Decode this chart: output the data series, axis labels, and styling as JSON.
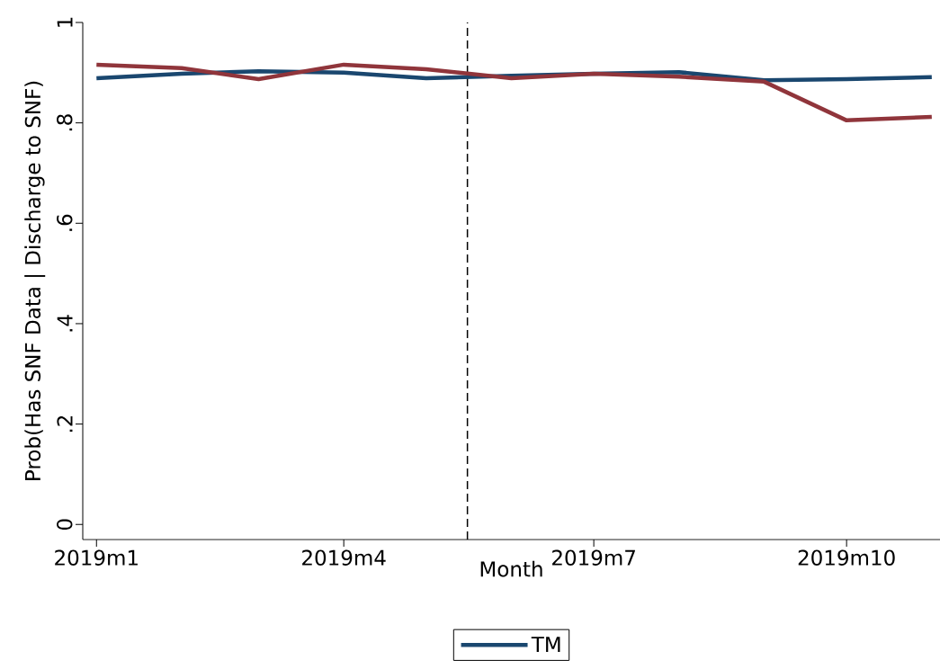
{
  "chart_data": {
    "type": "line",
    "xlabel": "Month",
    "ylabel": "Prob(Has SNF Data | Discharge to SNF)",
    "x": [
      "2019-01",
      "2019-02",
      "2019-03",
      "2019-04",
      "2019-05",
      "2019-06",
      "2019-07",
      "2019-08",
      "2019-09",
      "2019-10",
      "2019-11"
    ],
    "series": [
      {
        "name": "TM",
        "color": "#1a476f",
        "values": [
          0.889,
          0.898,
          0.903,
          0.9,
          0.889,
          0.894,
          0.898,
          0.901,
          0.885,
          0.887,
          0.891
        ]
      },
      {
        "color": "#90353b",
        "values": [
          0.916,
          0.909,
          0.887,
          0.916,
          0.907,
          0.889,
          0.898,
          0.892,
          0.882,
          0.805,
          0.812
        ]
      }
    ],
    "xlim": [
      "2018-12-27",
      "2019-11-04"
    ],
    "ylim": [
      -0.03,
      1.0
    ],
    "xticks": [
      {
        "value": "2019-01",
        "label": "2019m1"
      },
      {
        "value": "2019-04",
        "label": "2019m4"
      },
      {
        "value": "2019-07",
        "label": "2019m7"
      },
      {
        "value": "2019-10",
        "label": "2019m10"
      }
    ],
    "yticks": [
      0,
      {
        "value": 0.2,
        "label": ".2"
      },
      {
        "value": 0.4,
        "label": ".4"
      },
      {
        "value": 0.6,
        "label": ".6"
      },
      {
        "value": 0.8,
        "label": ".8"
      },
      1
    ],
    "ref_lines": [
      {
        "axis": "x",
        "value": "2019-05-16",
        "color": "#000000",
        "line_style": "dashed"
      }
    ],
    "legend": "bottom"
  }
}
